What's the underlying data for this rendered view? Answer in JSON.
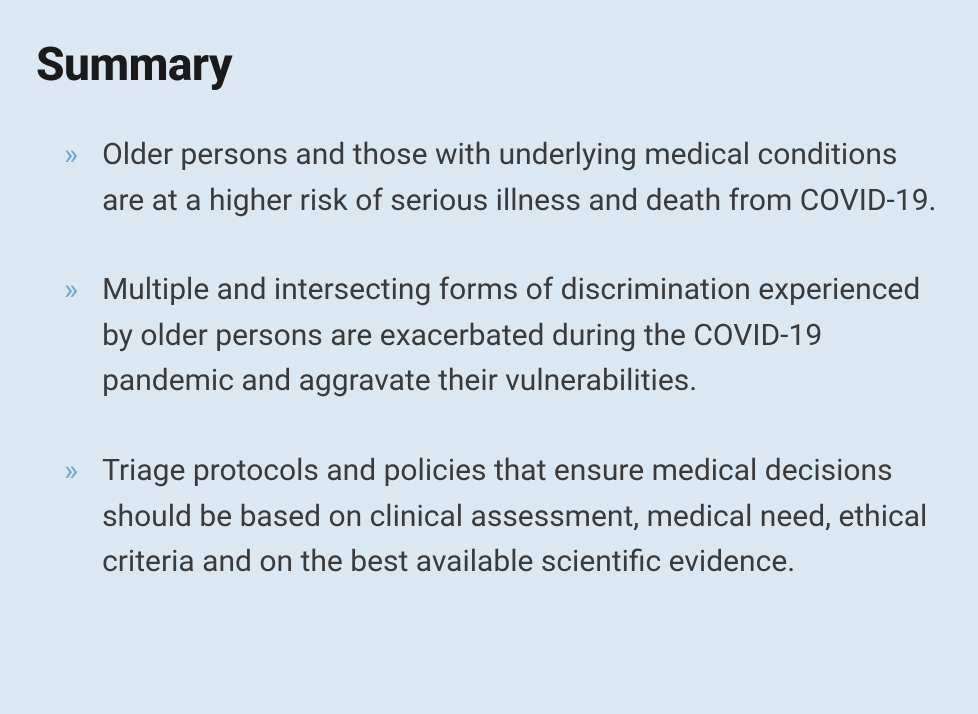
{
  "heading": "Summary",
  "heading_color": "#1a1a1a",
  "heading_fontsize": 46,
  "heading_fontweight": 800,
  "background_color": "#dbe8f2",
  "bullet_marker": "»",
  "bullet_marker_color": "#6fa8cf",
  "body_text_color": "#3a3a3a",
  "body_fontsize": 30,
  "body_line_height": 1.52,
  "items": [
    "Older persons and those with underlying medical conditions are at a higher risk of serious illness and death from COVID-19.",
    "Multiple and intersecting forms of discrimination experienced by older persons are exacerbated during the COVID-19 pandemic and aggravate their vulnerabilities.",
    "Triage protocols and policies that ensure medical decisions should be based on clinical assessment, medical need, ethical criteria and on the best available scientific evidence."
  ]
}
